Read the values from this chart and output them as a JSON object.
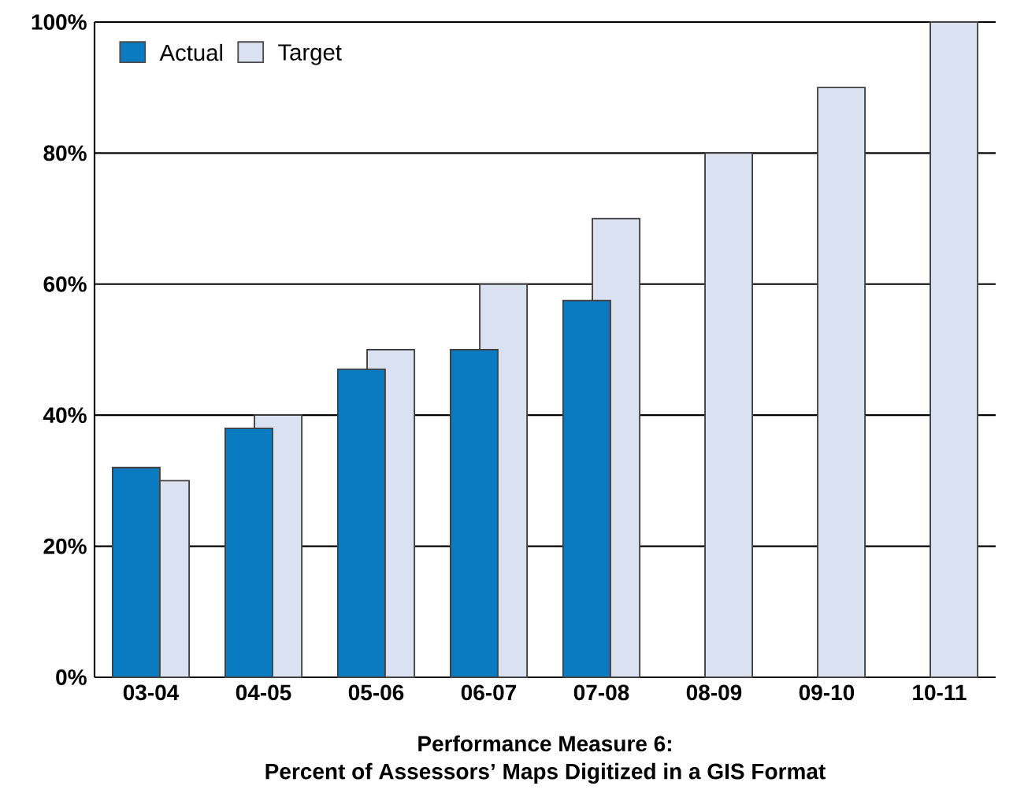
{
  "chart_data": {
    "type": "bar",
    "title": "Performance Measure 6:",
    "subtitle": "Percent of Assessors’ Maps Digitized in a GIS Format",
    "categories": [
      "03-04",
      "04-05",
      "05-06",
      "06-07",
      "07-08",
      "08-09",
      "09-10",
      "10-11"
    ],
    "series": [
      {
        "name": "Actual",
        "color": "#0a7bc1",
        "values": [
          32,
          38,
          47,
          50,
          57.5,
          null,
          null,
          null
        ]
      },
      {
        "name": "Target",
        "color": "#dae2f2",
        "values": [
          30,
          40,
          50,
          60,
          70,
          80,
          90,
          100
        ]
      }
    ],
    "ylim": [
      0,
      100
    ],
    "yticks": [
      {
        "value": 0,
        "label": "0%"
      },
      {
        "value": 20,
        "label": "20%"
      },
      {
        "value": 40,
        "label": "40%"
      },
      {
        "value": 60,
        "label": "60%"
      },
      {
        "value": 80,
        "label": "80%"
      },
      {
        "value": 100,
        "label": "100%"
      }
    ],
    "grid": "y",
    "legend": "top left"
  }
}
